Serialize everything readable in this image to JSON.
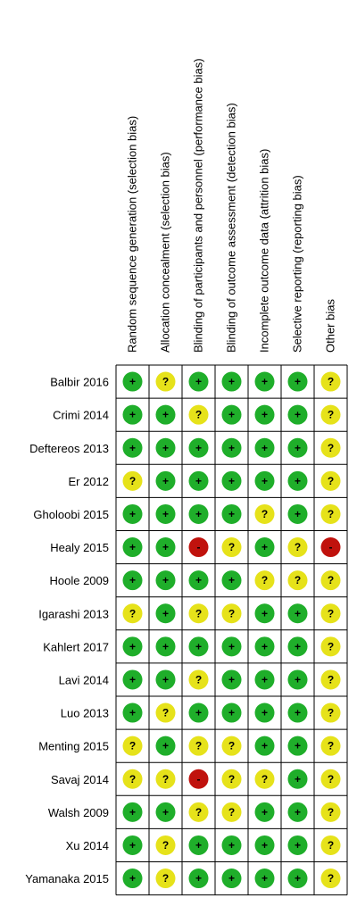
{
  "columns": [
    "Random sequence generation (selection bias)",
    "Allocation concealment (selection bias)",
    "Blinding of participants and personnel (performance bias)",
    "Blinding of outcome assessment (detection bias)",
    "Incomplete outcome data (attrition bias)",
    "Selective reporting (reporting bias)",
    "Other bias"
  ],
  "risk_levels": [
    {
      "symbol": "+",
      "color": "#1fae2a"
    },
    {
      "symbol": "?",
      "color": "#e6e21a"
    },
    {
      "symbol": "-",
      "color": "#c0120d"
    }
  ],
  "rows": [
    {
      "study": "Balbir 2016",
      "cells": [
        "+",
        "?",
        "+",
        "+",
        "+",
        "+",
        "?"
      ]
    },
    {
      "study": "Crimi 2014",
      "cells": [
        "+",
        "+",
        "?",
        "+",
        "+",
        "+",
        "?"
      ]
    },
    {
      "study": "Deftereos 2013",
      "cells": [
        "+",
        "+",
        "+",
        "+",
        "+",
        "+",
        "?"
      ]
    },
    {
      "study": "Er 2012",
      "cells": [
        "?",
        "+",
        "+",
        "+",
        "+",
        "+",
        "?"
      ]
    },
    {
      "study": "Gholoobi 2015",
      "cells": [
        "+",
        "+",
        "+",
        "+",
        "?",
        "+",
        "?"
      ]
    },
    {
      "study": "Healy 2015",
      "cells": [
        "+",
        "+",
        "-",
        "?",
        "+",
        "?",
        "-"
      ]
    },
    {
      "study": "Hoole 2009",
      "cells": [
        "+",
        "+",
        "+",
        "+",
        "?",
        "?",
        "?"
      ]
    },
    {
      "study": "Igarashi 2013",
      "cells": [
        "?",
        "+",
        "?",
        "?",
        "+",
        "+",
        "?"
      ]
    },
    {
      "study": "Kahlert 2017",
      "cells": [
        "+",
        "+",
        "+",
        "+",
        "+",
        "+",
        "?"
      ]
    },
    {
      "study": "Lavi 2014",
      "cells": [
        "+",
        "+",
        "?",
        "+",
        "+",
        "+",
        "?"
      ]
    },
    {
      "study": "Luo 2013",
      "cells": [
        "+",
        "?",
        "+",
        "+",
        "+",
        "+",
        "?"
      ]
    },
    {
      "study": "Menting 2015",
      "cells": [
        "?",
        "+",
        "?",
        "?",
        "+",
        "+",
        "?"
      ]
    },
    {
      "study": "Savaj 2014",
      "cells": [
        "?",
        "?",
        "-",
        "?",
        "?",
        "+",
        "?"
      ]
    },
    {
      "study": "Walsh 2009",
      "cells": [
        "+",
        "+",
        "?",
        "?",
        "+",
        "+",
        "?"
      ]
    },
    {
      "study": "Xu 2014",
      "cells": [
        "+",
        "?",
        "+",
        "+",
        "+",
        "+",
        "?"
      ]
    },
    {
      "study": "Yamanaka 2015",
      "cells": [
        "+",
        "?",
        "+",
        "+",
        "+",
        "+",
        "?"
      ]
    }
  ]
}
